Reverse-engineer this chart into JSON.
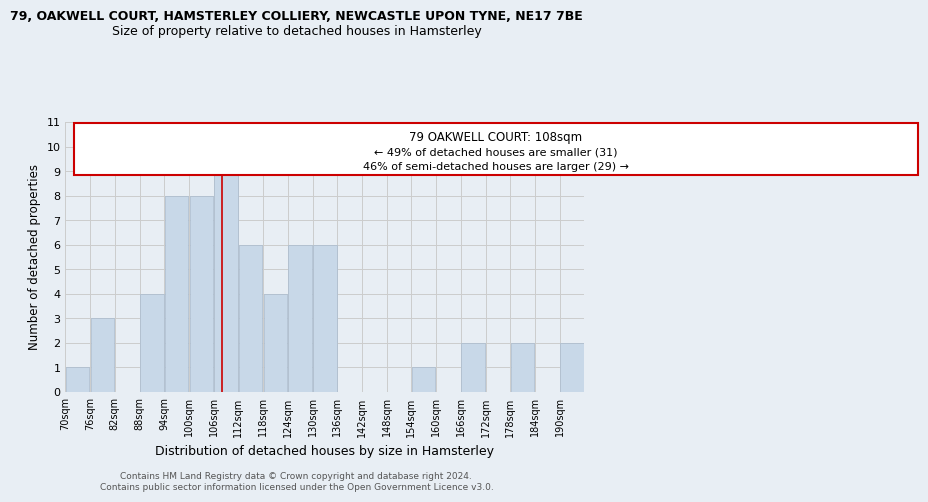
{
  "title_line1": "79, OAKWELL COURT, HAMSTERLEY COLLIERY, NEWCASTLE UPON TYNE, NE17 7BE",
  "title_line2": "Size of property relative to detached houses in Hamsterley",
  "xlabel": "Distribution of detached houses by size in Hamsterley",
  "ylabel": "Number of detached properties",
  "bin_labels": [
    "70sqm",
    "76sqm",
    "82sqm",
    "88sqm",
    "94sqm",
    "100sqm",
    "106sqm",
    "112sqm",
    "118sqm",
    "124sqm",
    "130sqm",
    "136sqm",
    "142sqm",
    "148sqm",
    "154sqm",
    "160sqm",
    "166sqm",
    "172sqm",
    "178sqm",
    "184sqm",
    "190sqm"
  ],
  "bin_edges": [
    70,
    76,
    82,
    88,
    94,
    100,
    106,
    112,
    118,
    124,
    130,
    136,
    142,
    148,
    154,
    160,
    166,
    172,
    178,
    184,
    190
  ],
  "bar_heights": [
    1,
    3,
    0,
    4,
    8,
    8,
    9,
    6,
    4,
    6,
    6,
    0,
    0,
    0,
    1,
    0,
    2,
    0,
    2,
    0,
    2
  ],
  "bar_color": "#c8d8e8",
  "bar_edge_color": "#aabbcc",
  "grid_color": "#cccccc",
  "ref_line_x": 108,
  "ref_line_color": "#cc0000",
  "ann_line1": "79 OAKWELL COURT: 108sqm",
  "ann_line2": "← 49% of detached houses are smaller (31)",
  "ann_line3": "46% of semi-detached houses are larger (29) →",
  "ylim": [
    0,
    11
  ],
  "yticks": [
    0,
    1,
    2,
    3,
    4,
    5,
    6,
    7,
    8,
    9,
    10,
    11
  ],
  "footer_line1": "Contains HM Land Registry data © Crown copyright and database right 2024.",
  "footer_line2": "Contains public sector information licensed under the Open Government Licence v3.0.",
  "background_color": "#e8eef4",
  "plot_bg_color": "#e8eef4",
  "title_fontsize": 9,
  "subtitle_fontsize": 9
}
